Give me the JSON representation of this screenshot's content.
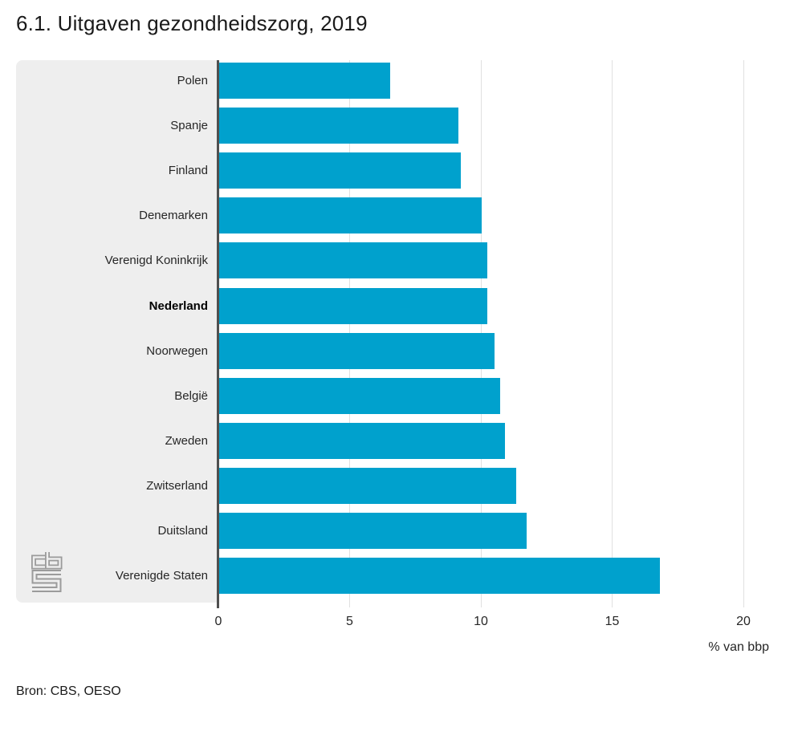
{
  "title": "6.1. Uitgaven gezondheidszorg, 2019",
  "source": "Bron: CBS, OESO",
  "logo_name": "cbs-logo",
  "colors": {
    "bar": "#00a1cd",
    "label_panel": "#eeeeee",
    "axis_line": "#4f4f4f",
    "gridline": "#e0e0e0",
    "text": "#262626",
    "logo": "#9b9b9b"
  },
  "chart_data": {
    "type": "bar",
    "orientation": "horizontal",
    "title": "6.1. Uitgaven gezondheidszorg, 2019",
    "xlabel": "% van bbp",
    "ylabel": "",
    "xlim": [
      0,
      20
    ],
    "x_ticks": [
      0,
      5,
      10,
      15,
      20
    ],
    "grid": true,
    "legend": "none",
    "categories": [
      "Polen",
      "Spanje",
      "Finland",
      "Denemarken",
      "Verenigd Koninkrijk",
      "Nederland",
      "Noorwegen",
      "België",
      "Zweden",
      "Zwitserland",
      "Duitsland",
      "Verenigde Staten"
    ],
    "values": [
      6.5,
      9.1,
      9.2,
      10.0,
      10.2,
      10.2,
      10.5,
      10.7,
      10.9,
      11.3,
      11.7,
      16.8
    ],
    "emphasized_category": "Nederland"
  }
}
